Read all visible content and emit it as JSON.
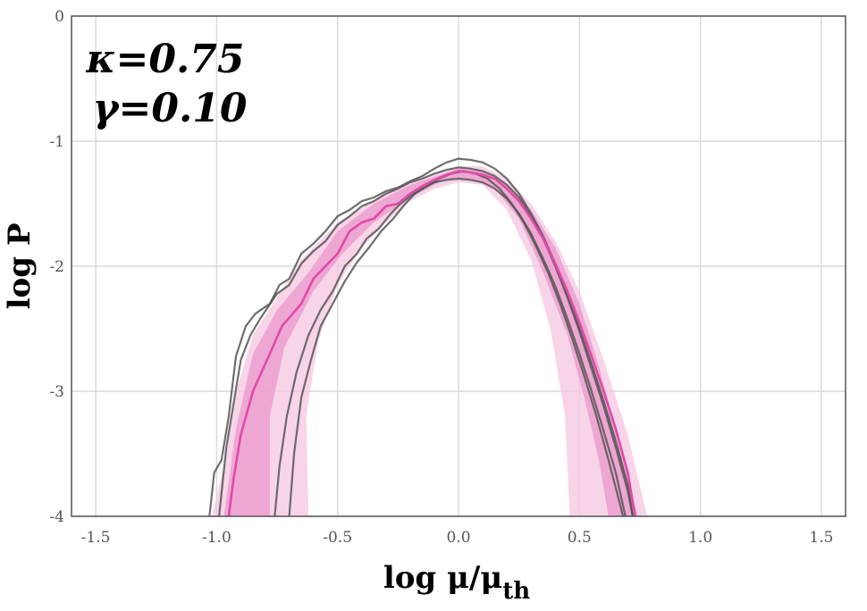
{
  "chart_data": {
    "type": "line",
    "xlabel": "log μ/μ",
    "xlabel_sub": "th",
    "ylabel": "log P",
    "xlim": [
      -1.6,
      1.6
    ],
    "ylim": [
      -4,
      0
    ],
    "grid": true,
    "x_ticks": [
      -1.5,
      -1.0,
      -0.5,
      0.0,
      0.5,
      1.0,
      1.5
    ],
    "x_tick_labels": [
      "-1.5",
      "-1.0",
      "-0.5",
      "0.0",
      "0.5",
      "1.0",
      "1.5"
    ],
    "y_ticks": [
      0,
      -1,
      -2,
      -3,
      -4
    ],
    "y_tick_labels": [
      "0",
      "-1",
      "-2",
      "-3",
      "-4"
    ],
    "annotations": [
      "κ=0.75",
      "γ=0.10"
    ],
    "colors": {
      "mean_line": "#e04aa8",
      "band_inner": "#e88fc6",
      "band_outer": "#f5c6e1",
      "sample_lines": "#555555",
      "grid": "#d9d9d9",
      "frame": "#555555"
    },
    "bands": [
      {
        "level": "outer",
        "upper": [
          [
            -1.02,
            -4.0
          ],
          [
            -0.97,
            -3.6
          ],
          [
            -0.92,
            -3.0
          ],
          [
            -0.85,
            -2.55
          ],
          [
            -0.75,
            -2.25
          ],
          [
            -0.65,
            -1.95
          ],
          [
            -0.5,
            -1.65
          ],
          [
            -0.3,
            -1.42
          ],
          [
            -0.15,
            -1.3
          ],
          [
            0.0,
            -1.2
          ],
          [
            0.1,
            -1.2
          ],
          [
            0.2,
            -1.3
          ],
          [
            0.3,
            -1.5
          ],
          [
            0.4,
            -1.8
          ],
          [
            0.5,
            -2.2
          ],
          [
            0.6,
            -2.75
          ],
          [
            0.7,
            -3.35
          ],
          [
            0.78,
            -4.0
          ]
        ],
        "lower": [
          [
            -0.62,
            -4.0
          ],
          [
            -0.63,
            -3.2
          ],
          [
            -0.58,
            -2.6
          ],
          [
            -0.5,
            -2.15
          ],
          [
            -0.4,
            -1.85
          ],
          [
            -0.3,
            -1.65
          ],
          [
            -0.2,
            -1.48
          ],
          [
            -0.1,
            -1.38
          ],
          [
            0.0,
            -1.33
          ],
          [
            0.1,
            -1.35
          ],
          [
            0.2,
            -1.55
          ],
          [
            0.3,
            -1.95
          ],
          [
            0.38,
            -2.5
          ],
          [
            0.44,
            -3.2
          ],
          [
            0.46,
            -4.0
          ]
        ]
      },
      {
        "level": "inner",
        "upper": [
          [
            -0.97,
            -4.0
          ],
          [
            -0.92,
            -3.3
          ],
          [
            -0.85,
            -2.7
          ],
          [
            -0.75,
            -2.35
          ],
          [
            -0.62,
            -2.05
          ],
          [
            -0.5,
            -1.72
          ],
          [
            -0.35,
            -1.5
          ],
          [
            -0.2,
            -1.35
          ],
          [
            0.0,
            -1.22
          ],
          [
            0.1,
            -1.24
          ],
          [
            0.2,
            -1.35
          ],
          [
            0.3,
            -1.55
          ],
          [
            0.4,
            -1.85
          ],
          [
            0.5,
            -2.3
          ],
          [
            0.58,
            -2.8
          ],
          [
            0.65,
            -3.3
          ],
          [
            0.74,
            -4.0
          ]
        ],
        "lower": [
          [
            -0.78,
            -4.0
          ],
          [
            -0.78,
            -3.2
          ],
          [
            -0.72,
            -2.65
          ],
          [
            -0.6,
            -2.2
          ],
          [
            -0.48,
            -1.9
          ],
          [
            -0.35,
            -1.65
          ],
          [
            -0.2,
            -1.45
          ],
          [
            -0.05,
            -1.3
          ],
          [
            0.05,
            -1.3
          ],
          [
            0.15,
            -1.38
          ],
          [
            0.25,
            -1.62
          ],
          [
            0.35,
            -2.05
          ],
          [
            0.45,
            -2.55
          ],
          [
            0.52,
            -3.05
          ],
          [
            0.58,
            -3.55
          ],
          [
            0.62,
            -4.0
          ]
        ]
      }
    ],
    "series": [
      {
        "role": "mean",
        "points": [
          [
            -0.95,
            -4.0
          ],
          [
            -0.93,
            -3.7
          ],
          [
            -0.9,
            -3.35
          ],
          [
            -0.85,
            -3.0
          ],
          [
            -0.78,
            -2.7
          ],
          [
            -0.73,
            -2.48
          ],
          [
            -0.65,
            -2.3
          ],
          [
            -0.6,
            -2.1
          ],
          [
            -0.55,
            -2.0
          ],
          [
            -0.5,
            -1.9
          ],
          [
            -0.45,
            -1.72
          ],
          [
            -0.4,
            -1.65
          ],
          [
            -0.35,
            -1.62
          ],
          [
            -0.3,
            -1.52
          ],
          [
            -0.25,
            -1.5
          ],
          [
            -0.2,
            -1.42
          ],
          [
            -0.15,
            -1.36
          ],
          [
            -0.1,
            -1.31
          ],
          [
            -0.05,
            -1.27
          ],
          [
            0.0,
            -1.24
          ],
          [
            0.05,
            -1.25
          ],
          [
            0.1,
            -1.27
          ],
          [
            0.15,
            -1.3
          ],
          [
            0.2,
            -1.38
          ],
          [
            0.25,
            -1.48
          ],
          [
            0.3,
            -1.62
          ],
          [
            0.35,
            -1.78
          ],
          [
            0.4,
            -1.98
          ],
          [
            0.45,
            -2.2
          ],
          [
            0.5,
            -2.45
          ],
          [
            0.55,
            -2.72
          ],
          [
            0.6,
            -3.0
          ],
          [
            0.65,
            -3.3
          ],
          [
            0.7,
            -3.65
          ],
          [
            0.73,
            -4.0
          ]
        ]
      },
      {
        "role": "sample",
        "points": [
          [
            -1.03,
            -4.0
          ],
          [
            -1.01,
            -3.65
          ],
          [
            -0.98,
            -3.55
          ],
          [
            -0.95,
            -3.2
          ],
          [
            -0.92,
            -2.72
          ],
          [
            -0.88,
            -2.48
          ],
          [
            -0.84,
            -2.38
          ],
          [
            -0.78,
            -2.3
          ],
          [
            -0.74,
            -2.15
          ],
          [
            -0.7,
            -2.1
          ],
          [
            -0.65,
            -1.9
          ],
          [
            -0.6,
            -1.82
          ],
          [
            -0.55,
            -1.72
          ],
          [
            -0.5,
            -1.6
          ],
          [
            -0.45,
            -1.55
          ],
          [
            -0.4,
            -1.48
          ],
          [
            -0.35,
            -1.45
          ],
          [
            -0.3,
            -1.4
          ],
          [
            -0.25,
            -1.37
          ],
          [
            -0.2,
            -1.32
          ],
          [
            -0.15,
            -1.28
          ],
          [
            -0.1,
            -1.22
          ],
          [
            -0.05,
            -1.17
          ],
          [
            0.0,
            -1.14
          ],
          [
            0.05,
            -1.15
          ],
          [
            0.1,
            -1.17
          ],
          [
            0.15,
            -1.22
          ],
          [
            0.2,
            -1.3
          ],
          [
            0.25,
            -1.42
          ],
          [
            0.3,
            -1.58
          ],
          [
            0.35,
            -1.76
          ],
          [
            0.4,
            -1.98
          ],
          [
            0.45,
            -2.22
          ],
          [
            0.5,
            -2.5
          ],
          [
            0.55,
            -2.78
          ],
          [
            0.6,
            -3.08
          ],
          [
            0.65,
            -3.4
          ],
          [
            0.7,
            -3.75
          ],
          [
            0.72,
            -4.0
          ]
        ]
      },
      {
        "role": "sample",
        "points": [
          [
            -0.99,
            -4.0
          ],
          [
            -0.96,
            -3.45
          ],
          [
            -0.93,
            -3.1
          ],
          [
            -0.9,
            -2.75
          ],
          [
            -0.86,
            -2.55
          ],
          [
            -0.82,
            -2.42
          ],
          [
            -0.75,
            -2.22
          ],
          [
            -0.7,
            -2.15
          ],
          [
            -0.65,
            -1.98
          ],
          [
            -0.6,
            -1.88
          ],
          [
            -0.55,
            -1.8
          ],
          [
            -0.5,
            -1.67
          ],
          [
            -0.45,
            -1.6
          ],
          [
            -0.4,
            -1.52
          ],
          [
            -0.35,
            -1.48
          ],
          [
            -0.3,
            -1.42
          ],
          [
            -0.25,
            -1.38
          ],
          [
            -0.2,
            -1.33
          ],
          [
            -0.15,
            -1.3
          ],
          [
            -0.1,
            -1.26
          ],
          [
            -0.05,
            -1.23
          ],
          [
            0.0,
            -1.21
          ],
          [
            0.05,
            -1.22
          ],
          [
            0.1,
            -1.24
          ],
          [
            0.15,
            -1.28
          ],
          [
            0.2,
            -1.35
          ],
          [
            0.25,
            -1.45
          ],
          [
            0.3,
            -1.6
          ],
          [
            0.35,
            -1.78
          ],
          [
            0.4,
            -2.0
          ],
          [
            0.45,
            -2.25
          ],
          [
            0.5,
            -2.52
          ],
          [
            0.55,
            -2.82
          ],
          [
            0.6,
            -3.12
          ],
          [
            0.65,
            -3.45
          ],
          [
            0.7,
            -3.8
          ],
          [
            0.72,
            -4.0
          ]
        ]
      },
      {
        "role": "sample",
        "points": [
          [
            -0.76,
            -4.0
          ],
          [
            -0.74,
            -3.6
          ],
          [
            -0.71,
            -3.2
          ],
          [
            -0.67,
            -2.85
          ],
          [
            -0.62,
            -2.55
          ],
          [
            -0.57,
            -2.35
          ],
          [
            -0.52,
            -2.2
          ],
          [
            -0.47,
            -2.0
          ],
          [
            -0.42,
            -1.9
          ],
          [
            -0.38,
            -1.78
          ],
          [
            -0.33,
            -1.7
          ],
          [
            -0.28,
            -1.58
          ],
          [
            -0.24,
            -1.5
          ],
          [
            -0.2,
            -1.44
          ],
          [
            -0.15,
            -1.38
          ],
          [
            -0.1,
            -1.33
          ],
          [
            -0.05,
            -1.31
          ],
          [
            0.0,
            -1.3
          ],
          [
            0.05,
            -1.31
          ],
          [
            0.1,
            -1.33
          ],
          [
            0.15,
            -1.38
          ],
          [
            0.2,
            -1.46
          ],
          [
            0.25,
            -1.58
          ],
          [
            0.3,
            -1.74
          ],
          [
            0.35,
            -1.94
          ],
          [
            0.4,
            -2.16
          ],
          [
            0.45,
            -2.42
          ],
          [
            0.5,
            -2.7
          ],
          [
            0.55,
            -3.0
          ],
          [
            0.6,
            -3.32
          ],
          [
            0.65,
            -3.65
          ],
          [
            0.69,
            -4.0
          ]
        ]
      },
      {
        "role": "sample",
        "points": [
          [
            -0.7,
            -4.0
          ],
          [
            -0.68,
            -3.5
          ],
          [
            -0.65,
            -3.05
          ],
          [
            -0.61,
            -2.75
          ],
          [
            -0.57,
            -2.48
          ],
          [
            -0.52,
            -2.3
          ],
          [
            -0.47,
            -2.12
          ],
          [
            -0.42,
            -1.97
          ],
          [
            -0.37,
            -1.85
          ],
          [
            -0.32,
            -1.72
          ],
          [
            -0.27,
            -1.62
          ],
          [
            -0.22,
            -1.5
          ],
          [
            -0.18,
            -1.42
          ],
          [
            -0.13,
            -1.36
          ],
          [
            -0.08,
            -1.3
          ],
          [
            -0.03,
            -1.26
          ],
          [
            0.02,
            -1.24
          ],
          [
            0.07,
            -1.26
          ],
          [
            0.12,
            -1.3
          ],
          [
            0.17,
            -1.38
          ],
          [
            0.22,
            -1.5
          ],
          [
            0.27,
            -1.65
          ],
          [
            0.32,
            -1.84
          ],
          [
            0.37,
            -2.05
          ],
          [
            0.42,
            -2.3
          ],
          [
            0.47,
            -2.58
          ],
          [
            0.52,
            -2.88
          ],
          [
            0.57,
            -3.2
          ],
          [
            0.62,
            -3.55
          ],
          [
            0.67,
            -3.92
          ],
          [
            0.68,
            -4.0
          ]
        ]
      }
    ]
  }
}
